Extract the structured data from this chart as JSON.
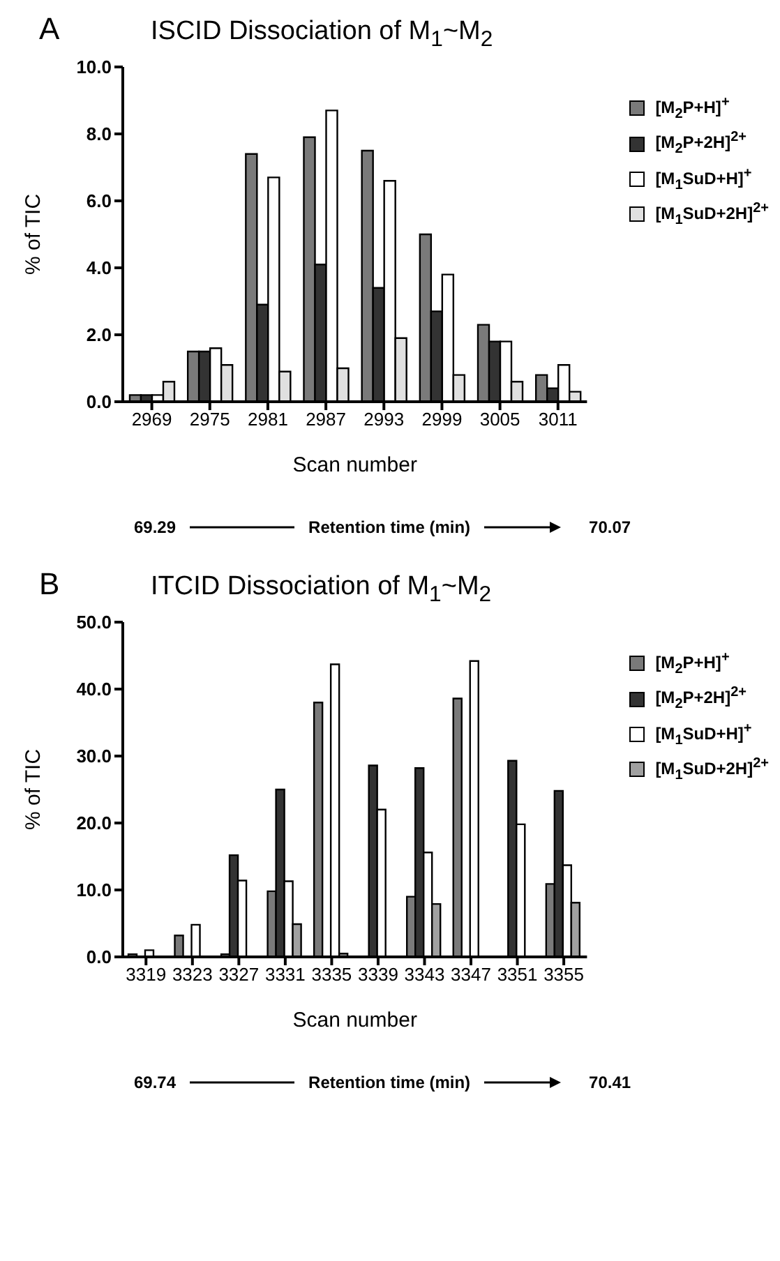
{
  "chart_data": [
    {
      "type": "bar",
      "title": "ISCID Dissociation of M$_{1}$~M$_{2}$",
      "xlabel": "Scan number",
      "ylabel": "% of TIC",
      "categories": [
        "2969",
        "2975",
        "2981",
        "2987",
        "2993",
        "2999",
        "3005",
        "3011"
      ],
      "series": [
        {
          "name": "[M$_{2}$P+H]$^{+}$",
          "color": "#7a7a7a",
          "values": [
            0.2,
            1.5,
            7.4,
            7.9,
            7.5,
            5.0,
            2.3,
            0.8
          ]
        },
        {
          "name": "[M$_{2}$P+2H]$^{2+}$",
          "color": "#333333",
          "values": [
            0.2,
            1.5,
            2.9,
            4.1,
            3.4,
            2.7,
            1.8,
            0.4
          ]
        },
        {
          "name": "[M$_{1}$SuD+H]$^{+}$",
          "color": "#ffffff",
          "values": [
            0.2,
            1.6,
            6.7,
            8.7,
            6.6,
            3.8,
            1.8,
            1.1
          ]
        },
        {
          "name": "[M$_{1}$SuD+2H]$^{2+}$",
          "color": "#e0e0e0",
          "values": [
            0.6,
            1.1,
            0.9,
            1.0,
            1.9,
            0.8,
            0.6,
            0.3
          ]
        }
      ],
      "ylim": [
        0,
        10
      ],
      "yticks": [
        {
          "value": 0,
          "label": "0.0"
        },
        {
          "value": 2,
          "label": "2.0"
        },
        {
          "value": 4,
          "label": "4.0"
        },
        {
          "value": 6,
          "label": "6.0"
        },
        {
          "value": 8,
          "label": "8.0"
        },
        {
          "value": 10,
          "label": "10.0"
        }
      ],
      "grid": false,
      "legend": "top right",
      "annotations": [
        "A",
        "69.29",
        "Retention time (min)",
        "70.07"
      ]
    },
    {
      "type": "bar",
      "title": "ITCID Dissociation of M$_{1}$~M$_{2}$",
      "xlabel": "Scan number",
      "ylabel": "% of TIC",
      "categories": [
        "3319",
        "3323",
        "3327",
        "3331",
        "3335",
        "3339",
        "3343",
        "3347",
        "3351",
        "3355"
      ],
      "series": [
        {
          "name": "[M$_{2}$P+H]$^{+}$",
          "color": "#7a7a7a",
          "values": [
            0.4,
            3.2,
            0.4,
            9.8,
            38.0,
            0,
            9.0,
            38.6,
            0,
            10.9
          ]
        },
        {
          "name": "[M$_{2}$P+2H]$^{2+}$",
          "color": "#333333",
          "values": [
            0,
            0,
            15.2,
            25.0,
            0,
            28.6,
            28.2,
            0,
            29.3,
            24.8
          ]
        },
        {
          "name": "[M$_{1}$SuD+H]$^{+}$",
          "color": "#ffffff",
          "values": [
            1.0,
            4.8,
            11.4,
            11.3,
            43.7,
            22.0,
            15.6,
            44.2,
            19.8,
            13.7
          ]
        },
        {
          "name": "[M$_{1}$SuD+2H]$^{2+}$",
          "color": "#a0a0a0",
          "values": [
            0,
            0,
            0,
            4.9,
            0.5,
            0,
            7.9,
            0,
            0,
            8.1
          ]
        }
      ],
      "ylim": [
        0,
        50
      ],
      "yticks": [
        {
          "value": 0,
          "label": "0.0"
        },
        {
          "value": 10,
          "label": "10.0"
        },
        {
          "value": 20,
          "label": "20.0"
        },
        {
          "value": 30,
          "label": "30.0"
        },
        {
          "value": 40,
          "label": "40.0"
        },
        {
          "value": 50,
          "label": "50.0"
        }
      ],
      "grid": false,
      "legend": "top right",
      "annotations": [
        "B",
        "69.74",
        "Retention time (min)",
        "70.41"
      ]
    }
  ]
}
